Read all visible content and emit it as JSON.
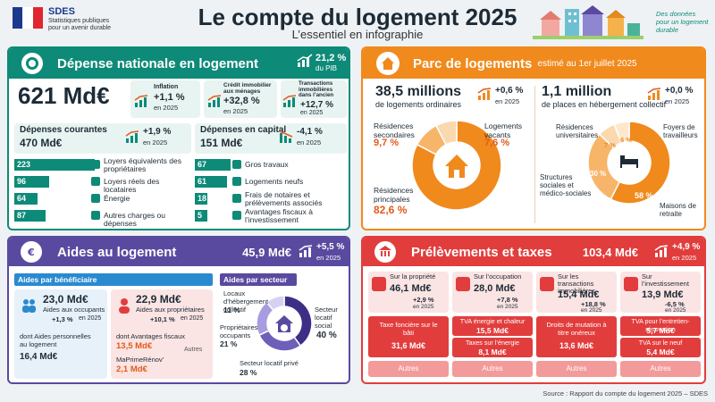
{
  "header": {
    "logo_text": "SDES",
    "logo_sub1": "Statistiques publiques",
    "logo_sub2": "pour un avenir durable",
    "title": "Le compte du logement 2025",
    "subtitle": "L’essentiel en infographie",
    "tagline1": "Des données",
    "tagline2": "pour un logement",
    "tagline3": "durable"
  },
  "depense": {
    "title": "Dépense nationale en logement",
    "pib_value": "21,2 %",
    "pib_label": "du PIB",
    "total": "621 Md€",
    "kpis": [
      {
        "label": "Inflation",
        "value": "+1,1 %",
        "period": "en 2025"
      },
      {
        "label": "Crédit immobilier aux ménages",
        "value": "+32,8 %",
        "period": "en 2025"
      },
      {
        "label": "Transactions immobilières dans l’ancien",
        "value": "+12,7 %",
        "period": "en 2025"
      }
    ],
    "courantes": {
      "title": "Dépenses courantes",
      "value": "470 Md€",
      "change": "+1,9 %",
      "period": "en 2025",
      "items": [
        {
          "v": "223",
          "l": "Loyers équivalents des propriétaires"
        },
        {
          "v": "96",
          "l": "Loyers réels des locataires"
        },
        {
          "v": "64",
          "l": "Énergie"
        },
        {
          "v": "87",
          "l": "Autres charges ou dépenses"
        }
      ]
    },
    "capital": {
      "title": "Dépenses en capital",
      "value": "151 Md€",
      "change": "-4,1 %",
      "period": "en 2025",
      "items": [
        {
          "v": "67",
          "l": "Gros travaux"
        },
        {
          "v": "61",
          "l": "Logements neufs"
        },
        {
          "v": "18",
          "l": "Frais de notaires et prélèvements associés"
        },
        {
          "v": "5",
          "l": "Avantages fiscaux à l’investissement"
        }
      ]
    }
  },
  "parc": {
    "title": "Parc de logements",
    "title_note": "estimé au 1er juillet 2025",
    "ordinaires": {
      "value": "38,5 millions",
      "label": "de logements ordinaires",
      "change": "+0,6 %",
      "period": "en 2025",
      "segments": [
        {
          "name": "Résidences principales",
          "pct": "82,6 %",
          "value": 82.6,
          "color": "#f08a1c"
        },
        {
          "name": "Résidences secondaires",
          "pct": "9,7 %",
          "value": 9.7,
          "color": "#f7b56a"
        },
        {
          "name": "Logements vacants",
          "pct": "7,6 %",
          "value": 7.6,
          "color": "#fbd9ae"
        }
      ]
    },
    "collectif": {
      "value": "1,1 million",
      "label": "de places en hébergement collectif",
      "change": "+0,0 %",
      "period": "en 2025",
      "segments": [
        {
          "name": "Maisons de retraite",
          "pct": "58 %",
          "value": 58,
          "color": "#f08a1c"
        },
        {
          "name": "Structures sociales et médico-sociales",
          "pct": "30 %",
          "value": 30,
          "color": "#f7b56a"
        },
        {
          "name": "Résidences universitaires",
          "pct": "7 %",
          "value": 7,
          "color": "#fbd9ae"
        },
        {
          "name": "Foyers de travailleurs",
          "pct": "6 %",
          "value": 6,
          "color": "#fde8cc"
        }
      ]
    }
  },
  "aides": {
    "title": "Aides au logement",
    "value": "45,9 Md€",
    "change": "+5,5 %",
    "period": "en 2025",
    "benef_title": "Aides par bénéficiaire",
    "occ_value": "23,0 Md€",
    "occ_label": "Aides aux occupants",
    "occ_change": "+1,3 %",
    "occ_period": "en 2025",
    "occ_sub_label": "dont Aides personnelles au logement",
    "occ_sub_value": "16,4 Md€",
    "prop_value": "22,9 Md€",
    "prop_label": "Aides aux propriétaires",
    "prop_change": "+10,1 %",
    "prop_period": "en 2025",
    "prop_sub1_label": "dont Avantages fiscaux",
    "prop_sub1_value": "13,5 Md€",
    "prop_sub2_label": "MaPrimeRénov’",
    "prop_sub2_value": "2,1 Md€",
    "autres": "Autres",
    "secteur_title": "Aides par secteur",
    "secteurs": [
      {
        "name": "Secteur locatif social",
        "pct": "40 %",
        "value": 40,
        "color": "#3d2f86"
      },
      {
        "name": "Secteur locatif privé",
        "pct": "28 %",
        "value": 28,
        "color": "#6e5fb8"
      },
      {
        "name": "Propriétaires occupants",
        "pct": "21 %",
        "value": 21,
        "color": "#a79ce0"
      },
      {
        "name": "Locaux d’hébergement collectif",
        "pct": "11 %",
        "value": 11,
        "color": "#d6d0f3"
      }
    ]
  },
  "prelev": {
    "title": "Prélèvements et taxes",
    "value": "103,4 Md€",
    "change": "+4,9 %",
    "period": "en 2025",
    "cols": [
      {
        "title": "Sur la propriété",
        "value": "46,1 Md€",
        "change": "+2,9 %",
        "period": "en 2025",
        "s1": "Taxe foncière sur le bâti",
        "v1": "31,6 Md€",
        "s2": "",
        "v2": "",
        "autres": "Autres"
      },
      {
        "title": "Sur l’occupation",
        "value": "28,0 Md€",
        "change": "+7,8 %",
        "period": "en 2025",
        "s1": "TVA énergie et chaleur",
        "v1": "15,5 Md€",
        "s2": "Taxes sur l’énergie",
        "v2": "8,1 Md€",
        "autres": "Autres"
      },
      {
        "title": "Sur les transactions immobilières",
        "value": "15,4 Md€",
        "change": "+18,8 %",
        "period": "en 2025",
        "s1": "Droits de mutation à titre onéreux",
        "v1": "13,6 Md€",
        "s2": "",
        "v2": "",
        "autres": "Autres"
      },
      {
        "title": "Sur l’investissement",
        "value": "13,9 Md€",
        "change": "-6,5 %",
        "period": "en 2025",
        "s1": "TVA pour l’entretien-rénovation",
        "v1": "5,7 Md€",
        "s2": "TVA sur le neuf",
        "v2": "5,4 Md€",
        "autres": "Autres"
      }
    ]
  },
  "source": "Source : Rapport du compte du logement 2025 – SDES"
}
